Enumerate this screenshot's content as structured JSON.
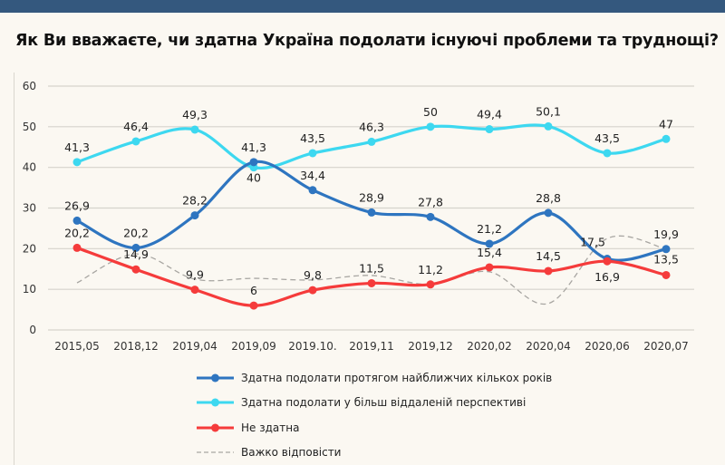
{
  "title": "Як Ви вважаєте, чи здатна Україна подолати існуючі проблеми та труднощі?",
  "chart_data": {
    "type": "line",
    "title": "Як Ви вважаєте, чи здатна Україна подолати існуючі проблеми та труднощі?",
    "categories": [
      "2015,05",
      "2018,12",
      "2019,04",
      "2019,09",
      "2019.10.",
      "2019,11",
      "2019,12",
      "2020,02",
      "2020,04",
      "2020,06",
      "2020,07"
    ],
    "ylim": [
      0,
      60
    ],
    "yticks": [
      "0",
      "10",
      "20",
      "30",
      "40",
      "50",
      "60"
    ],
    "grid": true,
    "legend_position": "bottom",
    "smooth": true,
    "series": [
      {
        "name": "Здатна подолати протягом найближчих кількох років",
        "color": "#2e75c0",
        "dashed": false,
        "markers": true,
        "values": [
          26.9,
          20.2,
          28.2,
          41.3,
          34.4,
          28.9,
          27.8,
          21.2,
          28.8,
          17.5,
          19.9
        ],
        "labels": [
          "26,9",
          "20,2",
          "28,2",
          "41,3",
          "34,4",
          "28,9",
          "27,8",
          "21,2",
          "28,8",
          "17,5",
          "19,9"
        ]
      },
      {
        "name": "Здатна подолати у більш віддаленій перспективі",
        "color": "#3dd8f0",
        "dashed": false,
        "markers": true,
        "values": [
          41.3,
          46.4,
          49.3,
          40,
          43.5,
          46.3,
          50,
          49.4,
          50.1,
          43.5,
          47
        ],
        "labels": [
          "41,3",
          "46,4",
          "49,3",
          "40",
          "43,5",
          "46,3",
          "50",
          "49,4",
          "50,1",
          "43,5",
          "47"
        ]
      },
      {
        "name": "Не здатна",
        "color": "#f53b3b",
        "dashed": false,
        "markers": true,
        "values": [
          20.2,
          14.9,
          9.9,
          6,
          9.8,
          11.5,
          11.2,
          15.4,
          14.5,
          16.9,
          13.5
        ],
        "labels": [
          "20,2",
          "14,9",
          "9,9",
          "6",
          "9,8",
          "11,5",
          "11,2",
          "15,4",
          "14,5",
          "16,9",
          "13,5"
        ]
      },
      {
        "name": "Важко відповісти",
        "color": "#a8a6a2",
        "dashed": true,
        "markers": false,
        "values": [
          11.6,
          18.7,
          12.5,
          12.7,
          12.3,
          13.4,
          11.2,
          14.3,
          6.5,
          22.5,
          19.9
        ],
        "labels": []
      }
    ]
  }
}
